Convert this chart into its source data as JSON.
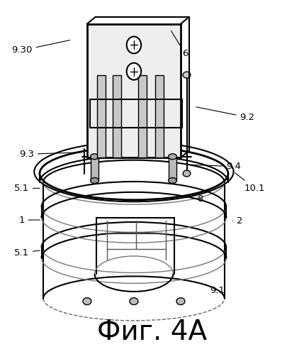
{
  "title": "Фиг. 4А",
  "title_fontsize": 28,
  "bg_color": "#ffffff",
  "fig_width": 4.29,
  "fig_height": 4.99,
  "dpi": 100
}
